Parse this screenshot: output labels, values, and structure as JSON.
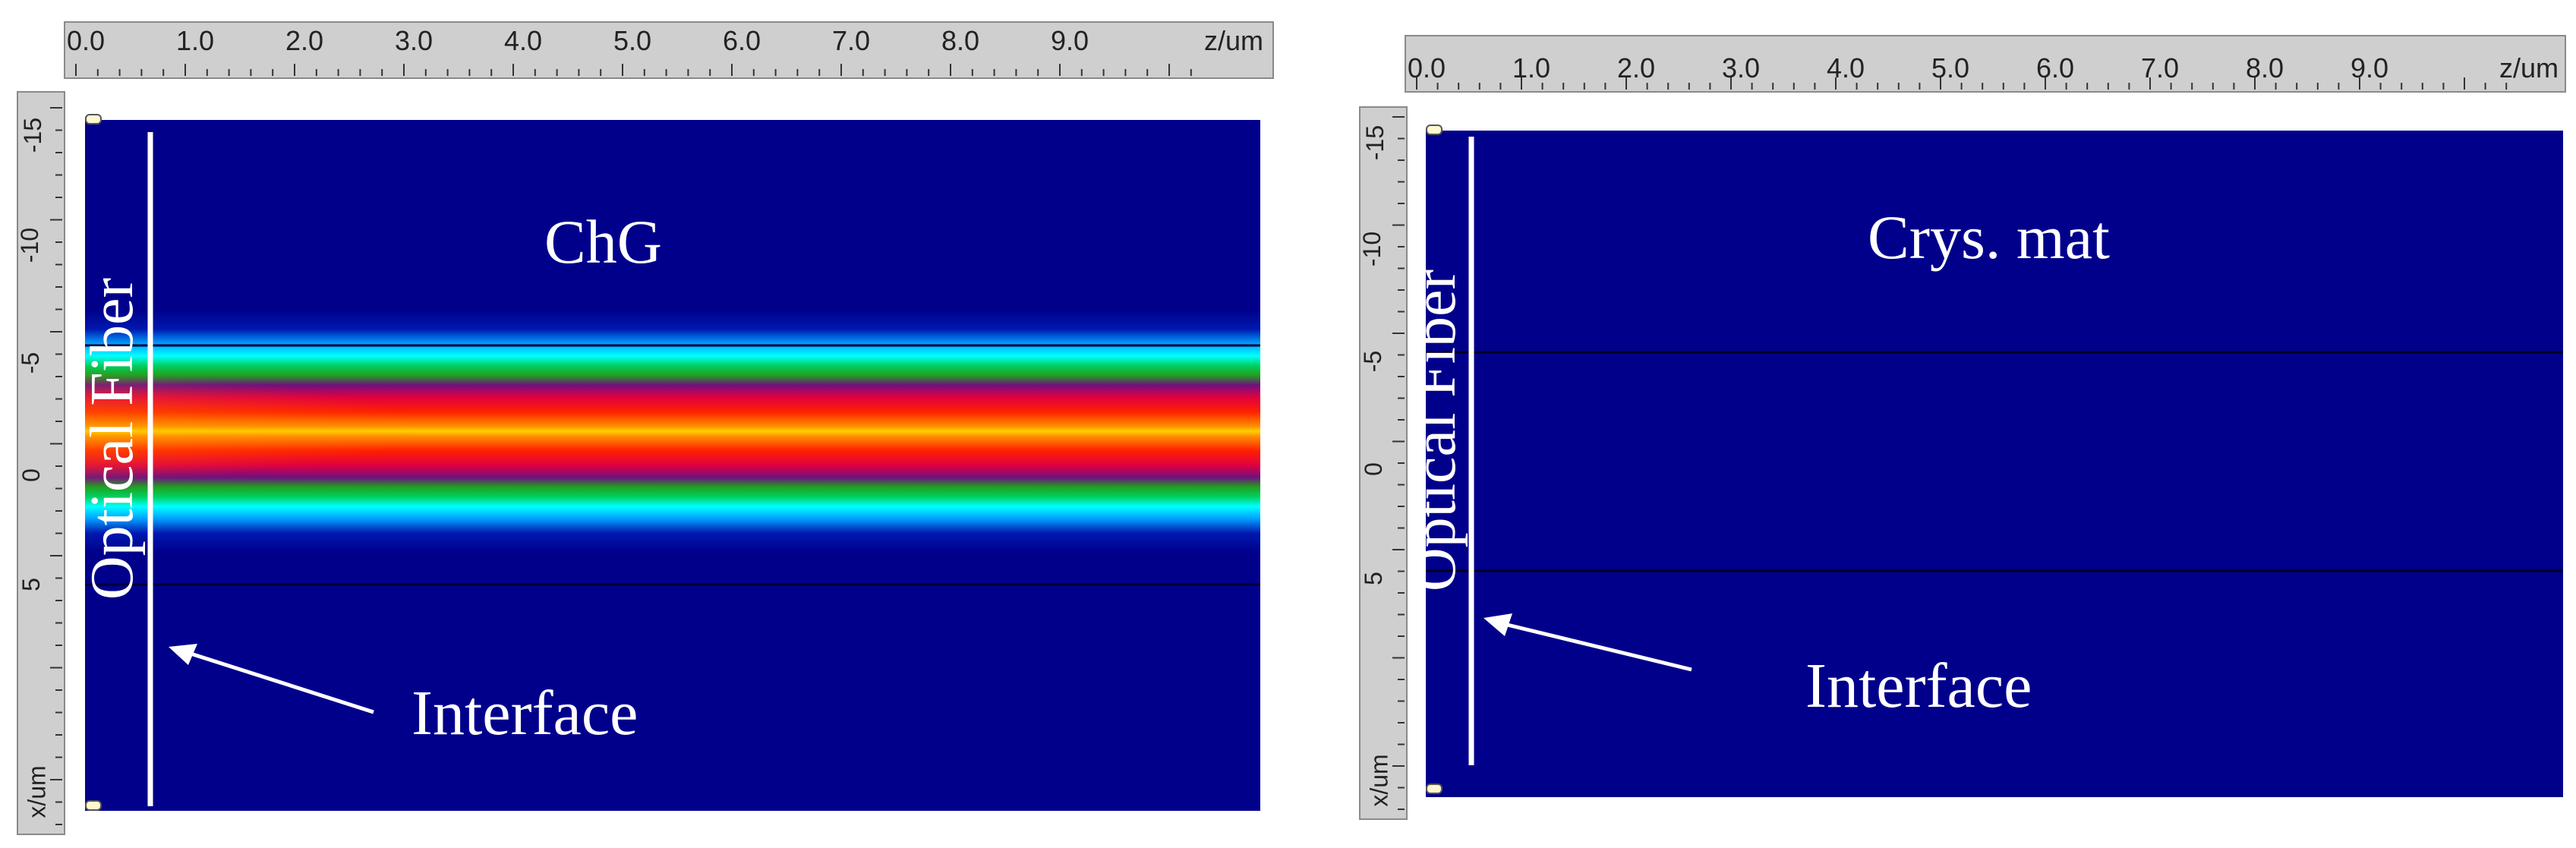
{
  "panels": [
    {
      "region_label": "ChG",
      "fiber_label": "Optical Fiber",
      "interface_label": "Interface",
      "z_ticks": [
        "0.0",
        "1.0",
        "2.0",
        "3.0",
        "4.0",
        "5.0",
        "6.0",
        "7.0",
        "8.0",
        "9.0"
      ],
      "z_axis_name": "z/um",
      "x_ticks": [
        "-15",
        "-10",
        "-5",
        "0",
        "5"
      ],
      "x_axis_name": "x/um"
    },
    {
      "region_label": "Crys. mat",
      "fiber_label": "Optical Fiber",
      "interface_label": "Interface",
      "z_ticks": [
        "0.0",
        "1.0",
        "2.0",
        "3.0",
        "4.0",
        "5.0",
        "6.0",
        "7.0",
        "8.0",
        "9.0"
      ],
      "z_axis_name": "z/um",
      "x_ticks": [
        "-15",
        "-10",
        "-5",
        "0",
        "5"
      ],
      "x_axis_name": "x/um"
    }
  ],
  "colors": {
    "background": "#00008b",
    "ruler": "#cfcfcf",
    "beam_core": "#ffff66",
    "beam_edge": "#00e0ff"
  }
}
